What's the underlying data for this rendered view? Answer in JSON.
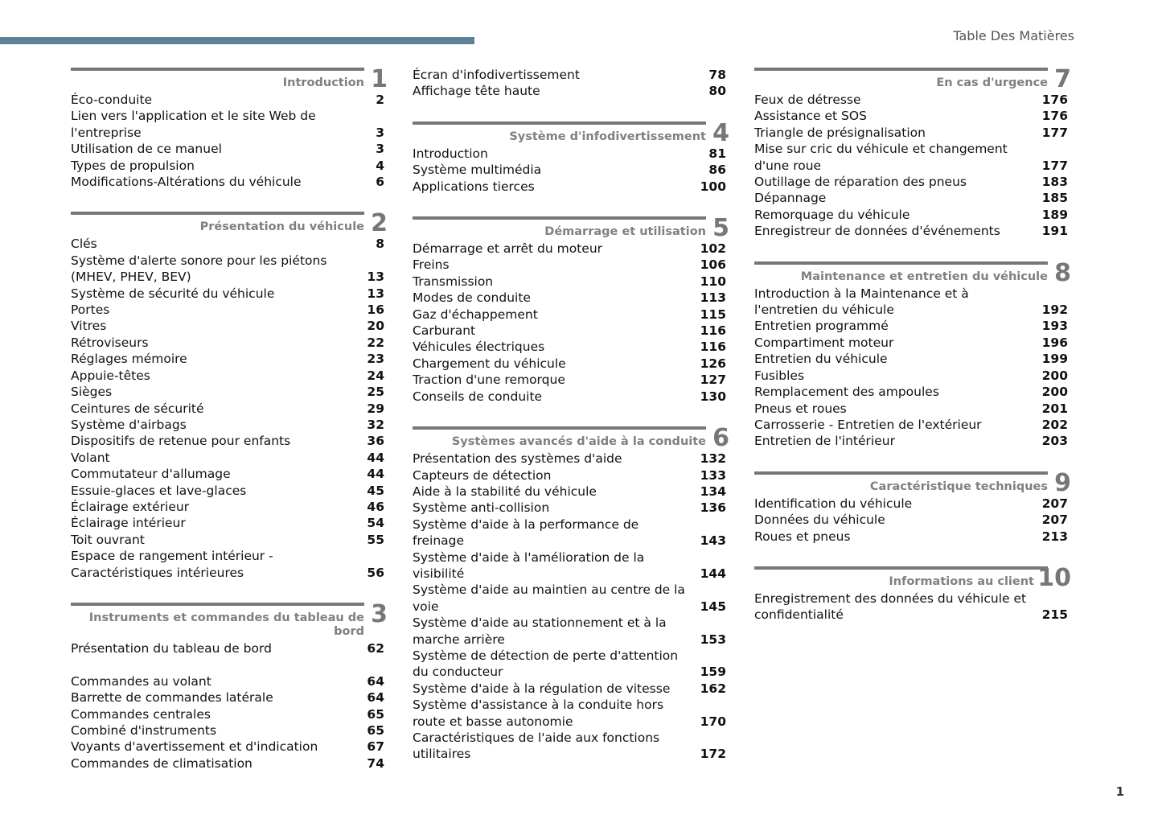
{
  "header": {
    "title": "Table Des Matières",
    "page": "1",
    "bar_color": "#5f8196"
  },
  "columns": [
    [
      {
        "num": "1",
        "title": "Introduction",
        "entries": [
          {
            "title": "Éco-conduite",
            "page": "2"
          },
          {
            "title": "Lien vers l'application et le site Web de l'entreprise",
            "page": "3"
          },
          {
            "title": "Utilisation de ce manuel",
            "page": "3"
          },
          {
            "title": "Types de propulsion",
            "page": "4"
          },
          {
            "title": "Modifications-Altérations du véhicule",
            "page": "6"
          }
        ]
      },
      {
        "num": "2",
        "title": "Présentation du véhicule",
        "entries": [
          {
            "title": "Clés",
            "page": "8"
          },
          {
            "title": "Système d'alerte sonore pour les piétons (MHEV, PHEV, BEV)",
            "page": "13"
          },
          {
            "title": "Système de sécurité du véhicule",
            "page": "13"
          },
          {
            "title": "Portes",
            "page": "16"
          },
          {
            "title": "Vitres",
            "page": "20"
          },
          {
            "title": "Rétroviseurs",
            "page": "22"
          },
          {
            "title": "Réglages mémoire",
            "page": "23"
          },
          {
            "title": "Appuie-têtes",
            "page": "24"
          },
          {
            "title": "Sièges",
            "page": "25"
          },
          {
            "title": "Ceintures de sécurité",
            "page": "29"
          },
          {
            "title": "Système d'airbags",
            "page": "32"
          },
          {
            "title": "Dispositifs de retenue pour enfants",
            "page": "36"
          },
          {
            "title": "Volant",
            "page": "44"
          },
          {
            "title": "Commutateur d'allumage",
            "page": "44"
          },
          {
            "title": "Essuie-glaces et lave-glaces",
            "page": "45"
          },
          {
            "title": "Éclairage extérieur",
            "page": "46"
          },
          {
            "title": "Éclairage intérieur",
            "page": "54"
          },
          {
            "title": "Toit ouvrant",
            "page": "55"
          },
          {
            "title": "Espace de rangement intérieur - Caractéristiques intérieures",
            "page": "56"
          }
        ]
      },
      {
        "num": "3",
        "title": "Instruments et commandes du tableau de bord",
        "entries": [
          {
            "title": "Présentation du tableau de bord",
            "page": "62"
          },
          {
            "title": "",
            "page": ""
          },
          {
            "title": "Commandes au volant",
            "page": "64"
          },
          {
            "title": "Barrette de commandes latérale",
            "page": "64"
          },
          {
            "title": "Commandes centrales",
            "page": "65"
          },
          {
            "title": "Combiné d'instruments",
            "page": "65"
          },
          {
            "title": "Voyants d'avertissement et d'indication",
            "page": "67"
          },
          {
            "title": "Commandes de climatisation",
            "page": "74"
          }
        ]
      }
    ],
    [
      {
        "num": "",
        "title": "",
        "entries": [
          {
            "title": "Écran d'infodivertissement",
            "page": "78"
          },
          {
            "title": "Affichage tête haute",
            "page": "80"
          }
        ]
      },
      {
        "num": "4",
        "title": "Système d'infodivertissement",
        "entries": [
          {
            "title": "Introduction",
            "page": "81"
          },
          {
            "title": "Système multimédia",
            "page": "86"
          },
          {
            "title": "Applications tierces",
            "page": "100"
          }
        ]
      },
      {
        "num": "5",
        "title": "Démarrage et utilisation",
        "entries": [
          {
            "title": "Démarrage et arrêt du moteur",
            "page": "102"
          },
          {
            "title": "Freins",
            "page": "106"
          },
          {
            "title": "Transmission",
            "page": "110"
          },
          {
            "title": "Modes de conduite",
            "page": "113"
          },
          {
            "title": "Gaz d'échappement",
            "page": "115"
          },
          {
            "title": "Carburant",
            "page": "116"
          },
          {
            "title": "Véhicules électriques",
            "page": "116"
          },
          {
            "title": "Chargement du véhicule",
            "page": "126"
          },
          {
            "title": "Traction d'une remorque",
            "page": "127"
          },
          {
            "title": "Conseils de conduite",
            "page": "130"
          }
        ]
      },
      {
        "num": "6",
        "title": "Systèmes avancés d'aide à la conduite",
        "entries": [
          {
            "title": "Présentation des systèmes d'aide",
            "page": "132"
          },
          {
            "title": "Capteurs de détection",
            "page": "133"
          },
          {
            "title": "Aide à la stabilité du véhicule",
            "page": "134"
          },
          {
            "title": "Système anti-collision",
            "page": "136"
          },
          {
            "title": "Système d'aide à la performance de freinage",
            "page": "143"
          },
          {
            "title": "Système d'aide à l'amélioration de la visibilité",
            "page": "144"
          },
          {
            "title": "Système d'aide au maintien au centre de la voie",
            "page": "145"
          },
          {
            "title": "Système d'aide au stationnement et à la marche arrière",
            "page": "153"
          },
          {
            "title": "Système de détection de perte d'attention du conducteur",
            "page": "159"
          },
          {
            "title": "Système d'aide à la régulation de vitesse",
            "page": "162"
          },
          {
            "title": "Système d'assistance à la conduite hors route et basse autonomie",
            "page": "170"
          },
          {
            "title": "Caractéristiques de l'aide aux fonctions utilitaires",
            "page": "172"
          }
        ]
      }
    ],
    [
      {
        "num": "7",
        "title": "En cas d'urgence",
        "entries": [
          {
            "title": "Feux de détresse",
            "page": "176"
          },
          {
            "title": "Assistance et SOS",
            "page": "176"
          },
          {
            "title": "Triangle de présignalisation",
            "page": "177"
          },
          {
            "title": "Mise sur cric du véhicule et changement d'une roue",
            "page": "177"
          },
          {
            "title": "Outillage de réparation des pneus",
            "page": "183"
          },
          {
            "title": "Dépannage",
            "page": "185"
          },
          {
            "title": "Remorquage du véhicule",
            "page": "189"
          },
          {
            "title": "Enregistreur de données d'événements",
            "page": "191"
          }
        ]
      },
      {
        "num": "8",
        "title": "Maintenance et entretien du véhicule",
        "entries": [
          {
            "title": "Introduction à la Maintenance et à l'entretien du véhicule",
            "page": "192"
          },
          {
            "title": "Entretien programmé",
            "page": "193"
          },
          {
            "title": "Compartiment moteur",
            "page": "196"
          },
          {
            "title": "Entretien du véhicule",
            "page": "199"
          },
          {
            "title": "Fusibles",
            "page": "200"
          },
          {
            "title": "Remplacement des ampoules",
            "page": "200"
          },
          {
            "title": "Pneus et roues",
            "page": "201"
          },
          {
            "title": "Carrosserie - Entretien de l'extérieur",
            "page": "202"
          },
          {
            "title": "Entretien de l'intérieur",
            "page": "203"
          }
        ]
      },
      {
        "num": "9",
        "title": "Caractéristique techniques",
        "entries": [
          {
            "title": "Identification du véhicule",
            "page": "207"
          },
          {
            "title": "Données du véhicule",
            "page": "207"
          },
          {
            "title": "Roues et pneus",
            "page": "213"
          }
        ]
      },
      {
        "num": "10",
        "title": "Informations au client",
        "entries": [
          {
            "title": "Enregistrement des données du véhicule et confidentialité",
            "page": "215"
          }
        ]
      }
    ]
  ]
}
